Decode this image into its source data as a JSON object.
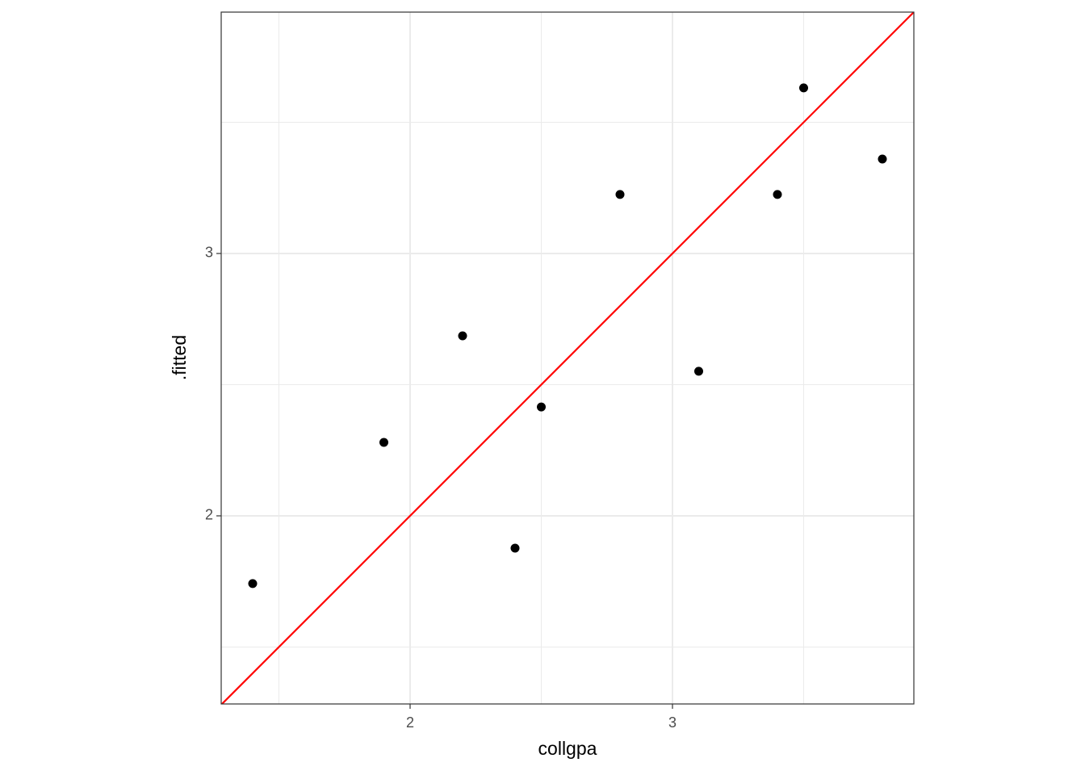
{
  "chart_data": {
    "type": "scatter",
    "x_label": "collgpa",
    "y_label": ".fitted",
    "x": [
      1.4,
      1.9,
      2.2,
      2.4,
      2.5,
      2.8,
      3.1,
      3.4,
      3.5,
      3.8
    ],
    "values": [
      1.742,
      2.28,
      2.686,
      1.877,
      2.415,
      3.225,
      2.551,
      3.225,
      3.631,
      3.36
    ],
    "color": "#000000",
    "xlim": [
      1.28,
      3.92
    ],
    "ylim": [
      1.283,
      3.92
    ],
    "xticks": [
      2,
      3
    ],
    "yticks": [
      2,
      3
    ],
    "x_minor_grid": [
      1.5,
      2.5,
      3.5
    ],
    "y_minor_grid": [
      1.5,
      2.5,
      3.5
    ],
    "grid": true,
    "reference_line": {
      "slope": 1,
      "intercept": 0,
      "color": "#ff0000"
    }
  }
}
